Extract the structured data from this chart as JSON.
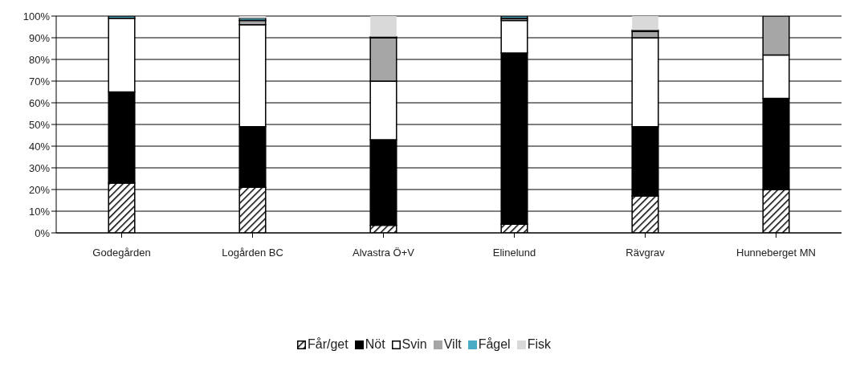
{
  "chart_data": {
    "type": "bar",
    "stacked": true,
    "categories": [
      "Godegården",
      "Logården BC",
      "Alvastra Ö+V",
      "Elinelund",
      "Rävgrav",
      "Hunneberget MN"
    ],
    "series": [
      {
        "name": "Får/get",
        "color": "#000000",
        "values": [
          23,
          21,
          3.5,
          4,
          17,
          20
        ]
      },
      {
        "name": "Nöt",
        "color": "#000000",
        "values": [
          42,
          28,
          39.5,
          79,
          32,
          42
        ]
      },
      {
        "name": "Svin",
        "color": "#ffffff",
        "values": [
          34,
          47,
          27,
          15,
          41,
          20
        ]
      },
      {
        "name": "Vilt",
        "color": "#a6a6a6",
        "values": [
          0,
          2,
          20,
          1,
          3,
          18
        ]
      },
      {
        "name": "Fågel",
        "color": "#4bacc6",
        "values": [
          1,
          1,
          0.5,
          1,
          0.5,
          0
        ]
      },
      {
        "name": "Fisk",
        "color": "#d9d9d9",
        "values": [
          0,
          1,
          9.5,
          0,
          6.5,
          0
        ]
      }
    ],
    "ylim": [
      0,
      100
    ],
    "yticks": [
      {
        "value": 0,
        "label": "0%"
      },
      {
        "value": 10,
        "label": "10%"
      },
      {
        "value": 20,
        "label": "20%"
      },
      {
        "value": 30,
        "label": "30%"
      },
      {
        "value": 40,
        "label": "40%"
      },
      {
        "value": 50,
        "label": "50%"
      },
      {
        "value": 60,
        "label": "60%"
      },
      {
        "value": 70,
        "label": "70%"
      },
      {
        "value": 80,
        "label": "80%"
      },
      {
        "value": 90,
        "label": "90%"
      },
      {
        "value": 100,
        "label": "100%"
      }
    ],
    "grid": "y",
    "legend": "bottom"
  }
}
